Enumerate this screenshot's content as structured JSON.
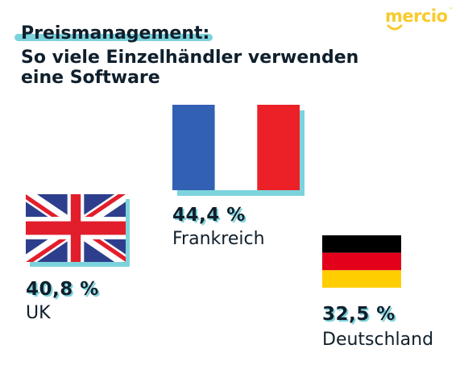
{
  "brand": {
    "logo_text": "mercio",
    "logo_mark": "™"
  },
  "colors": {
    "navy": "#0f1f2c",
    "accent_teal": "#7dd3dc",
    "logo_yellow": "#f7cb2a",
    "flag_fr_blue": "#3260b3",
    "flag_fr_red": "#ec2027",
    "flag_uk_blue": "#2d3f8c",
    "flag_uk_red": "#e21e2c",
    "flag_de_black": "#000000",
    "flag_de_red": "#e3001b",
    "flag_de_gold": "#ffce00"
  },
  "chart_data": {
    "type": "bar",
    "title": "Preismanagement:",
    "subtitle": [
      "So viele Einzelhändler verwenden",
      "eine Software"
    ],
    "categories": [
      "UK",
      "Frankreich",
      "Deutschland"
    ],
    "values": [
      40.8,
      44.4,
      32.5
    ],
    "labels": [
      "40,8 %",
      "44,4 %",
      "32,5 %"
    ],
    "icons": [
      "uk-flag-icon",
      "france-flag-icon",
      "germany-flag-icon"
    ],
    "unit": "%"
  }
}
